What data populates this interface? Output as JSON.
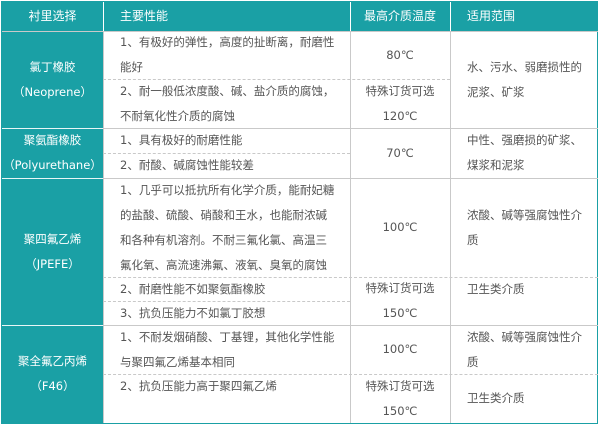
{
  "colors": {
    "accent": "#1aa0a5",
    "text": "#555555",
    "border": "#c9c9c9"
  },
  "header": [
    "衬里选择",
    "主要性能",
    "最高介质温度",
    "适用范围"
  ],
  "rows": [
    {
      "lining": [
        "氯丁橡胶",
        "（Neoprene）"
      ],
      "props": [
        [
          "1、有极好的弹性，高度的扯断离，耐磨性",
          "能好"
        ],
        [
          "2、耐一般低浓度酸、碱、盐介质的腐蚀，",
          "不耐氧化性介质的腐蚀"
        ]
      ],
      "temps": [
        [
          "80℃"
        ],
        [
          "特殊订货可选",
          "120℃"
        ]
      ],
      "uses": [
        [
          "水、污水、弱磨损性的",
          "泥浆、矿浆"
        ]
      ]
    },
    {
      "lining": [
        "聚氨酯橡胶",
        "（Polyurethane）"
      ],
      "props": [
        [
          "1、具有极好的耐磨性能"
        ],
        [
          "2、耐酸、碱腐蚀性能较差"
        ]
      ],
      "temps": [
        [
          "70℃"
        ]
      ],
      "uses": [
        [
          "中性、强磨损的矿浆、",
          "煤浆和泥浆"
        ]
      ]
    },
    {
      "lining": [
        "聚四氟乙烯",
        "（JPEFE）"
      ],
      "props": [
        [
          "1、几乎可以抵抗所有化学介质，能耐妃糖",
          "的盐酸、硫酸、硝酸和王水，也能耐浓碱",
          "和各种有机溶剂。不耐三氟化氯、高温三",
          "氟化氧、高流速沸氟、液氧、臭氧的腐蚀"
        ],
        [
          "2、耐磨性能不如聚氨酯橡胶"
        ],
        [
          "3、抗负压能力不如氯丁胶想"
        ]
      ],
      "temps": [
        [
          "100℃"
        ],
        [
          "特殊订货可选",
          "150℃"
        ]
      ],
      "uses": [
        [
          "浓酸、碱等强腐蚀性介",
          "质"
        ],
        [
          "卫生类介质"
        ]
      ]
    },
    {
      "lining": [
        "聚全氟乙丙烯",
        "（F46）"
      ],
      "props": [
        [
          "1、不耐发烟硝酸、丁基锂，其他化学性能",
          "与聚四氟乙烯基本相同"
        ],
        [
          "2、抗负压能力高于聚四氟乙烯"
        ]
      ],
      "temps": [
        [
          "100℃"
        ],
        [
          "特殊订货可选",
          "150℃"
        ]
      ],
      "uses": [
        [
          "浓酸、碱等强腐蚀性介",
          "质"
        ],
        [
          "卫生类介质"
        ]
      ]
    }
  ]
}
